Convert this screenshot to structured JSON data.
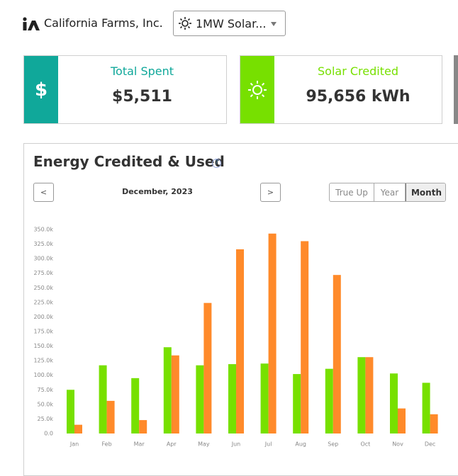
{
  "header": {
    "company": "California Farms, Inc.",
    "site": "1MW Solar..."
  },
  "cards": [
    {
      "icon": "$",
      "label": "Total Spent",
      "value": "$5,511"
    },
    {
      "label": "Solar Credited",
      "value": "95,656 kWh"
    }
  ],
  "panel": {
    "title": "Energy Credited & Used",
    "help": "?",
    "prev": "<",
    "period": "December, 2023",
    "next": ">",
    "tabs": [
      "True Up",
      "Year",
      "Month"
    ]
  },
  "chart_data": {
    "type": "bar",
    "categories": [
      "Jan",
      "Feb",
      "Mar",
      "Apr",
      "May",
      "Jun",
      "Jul",
      "Aug",
      "Sep",
      "Oct",
      "Nov",
      "Dec"
    ],
    "series": [
      {
        "color": "#77e000",
        "values": [
          75000,
          117000,
          95000,
          148000,
          117000,
          119000,
          120000,
          102000,
          111000,
          131000,
          103000,
          87000
        ]
      },
      {
        "color": "#ff8a2a",
        "values": [
          15000,
          56000,
          23000,
          134000,
          224000,
          316000,
          343000,
          330000,
          272000,
          131000,
          43000,
          33000
        ]
      }
    ],
    "ylim": [
      0,
      350000
    ],
    "yticks": [
      {
        "value": 0,
        "label": "0.0"
      },
      {
        "value": 25000,
        "label": "25.0k"
      },
      {
        "value": 50000,
        "label": "50.0k"
      },
      {
        "value": 75000,
        "label": "75.0k"
      },
      {
        "value": 100000,
        "label": "100.0k"
      },
      {
        "value": 125000,
        "label": "125.0k"
      },
      {
        "value": 150000,
        "label": "150.0k"
      },
      {
        "value": 175000,
        "label": "175.0k"
      },
      {
        "value": 200000,
        "label": "200.0k"
      },
      {
        "value": 225000,
        "label": "225.0k"
      },
      {
        "value": 250000,
        "label": "250.0k"
      },
      {
        "value": 275000,
        "label": "275.0k"
      },
      {
        "value": 300000,
        "label": "300.0k"
      },
      {
        "value": 325000,
        "label": "325.0k"
      },
      {
        "value": 350000,
        "label": "350.0k"
      }
    ]
  }
}
